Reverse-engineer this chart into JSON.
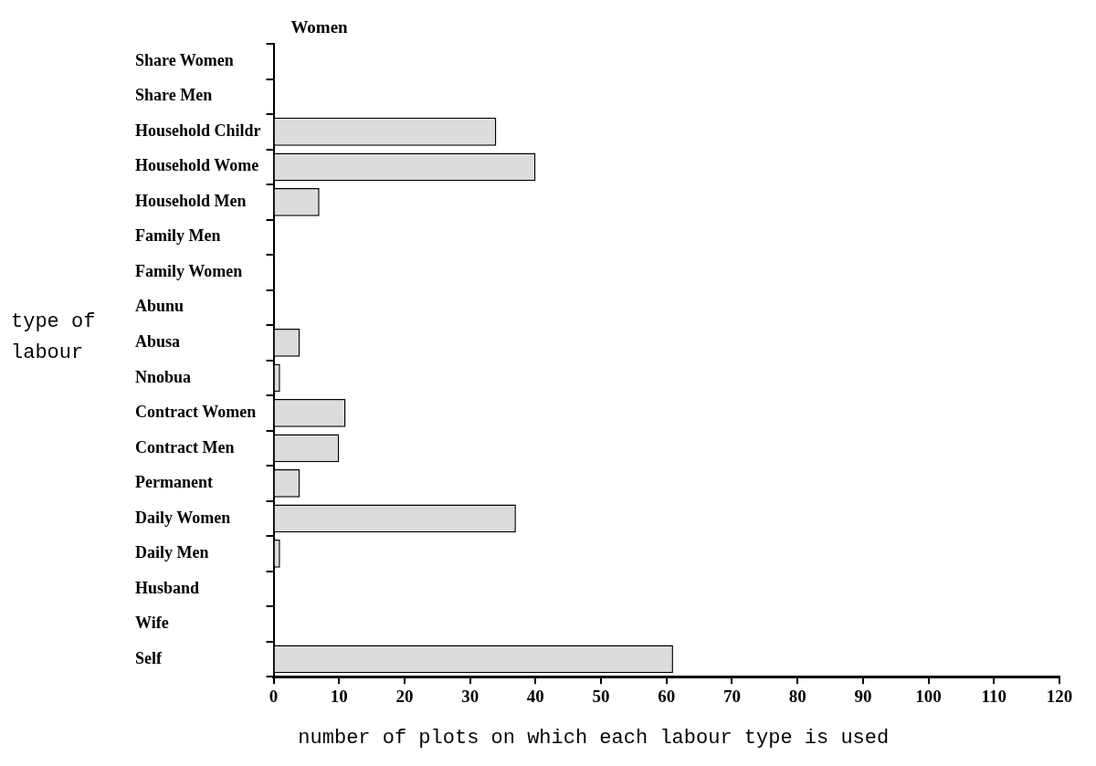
{
  "chart_data": {
    "type": "bar",
    "orientation": "horizontal",
    "title": "Women",
    "xlabel": "number of plots on which each labour type is used",
    "ylabel": "type of labour",
    "categories": [
      "Share Women",
      "Share Men",
      "Household Childr",
      "Household Wome",
      "Household Men",
      "Family Men",
      "Family Women",
      "Abunu",
      "Abusa",
      "Nnobua",
      "Contract Women",
      "Contract Men",
      "Permanent",
      "Daily Women",
      "Daily Men",
      "Husband",
      "Wife",
      "Self"
    ],
    "values": [
      0,
      0,
      34,
      40,
      7,
      0,
      0,
      0,
      4,
      1,
      11,
      10,
      4,
      37,
      1,
      0,
      0,
      61
    ],
    "color": "#dcdcdc",
    "xlim": [
      0,
      120
    ],
    "xticks": [
      0,
      10,
      20,
      30,
      40,
      50,
      60,
      70,
      80,
      90,
      100,
      110,
      120
    ],
    "grid": false,
    "legend": false
  }
}
